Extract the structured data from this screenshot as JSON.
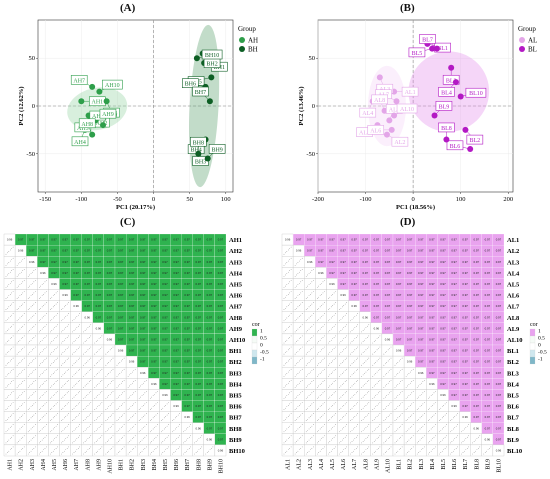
{
  "panels": {
    "A": {
      "label": "(A)"
    },
    "B": {
      "label": "(B)"
    },
    "C": {
      "label": "(C)"
    },
    "D": {
      "label": "(D)"
    }
  },
  "chart_data": [
    {
      "type": "scatter",
      "panel": "A",
      "xlabel": "PC1 (20.17%)",
      "ylabel": "PC2 (12.62%)",
      "xlim": [
        -160,
        110
      ],
      "ylim": [
        -90,
        90
      ],
      "xticks": [
        -150,
        -100,
        -50,
        0,
        50,
        100
      ],
      "yticks": [
        -50,
        0,
        50
      ],
      "legend": {
        "title": "Group",
        "placement": "right"
      },
      "colors": {
        "AH": "#2e9e4a",
        "BH": "#0d5e24"
      },
      "series": [
        {
          "name": "AH",
          "points": [
            {
              "label": "AH1",
              "x": -100,
              "y": 5
            },
            {
              "label": "AH2",
              "x": -90,
              "y": -10
            },
            {
              "label": "AH3",
              "x": -65,
              "y": 5
            },
            {
              "label": "AH4",
              "x": -95,
              "y": -25
            },
            {
              "label": "AH5",
              "x": -80,
              "y": -15
            },
            {
              "label": "AH6",
              "x": -55,
              "y": -10
            },
            {
              "label": "AH7",
              "x": -85,
              "y": 20
            },
            {
              "label": "AH8",
              "x": -85,
              "y": -30
            },
            {
              "label": "AH9",
              "x": -70,
              "y": -20
            },
            {
              "label": "AH10",
              "x": -75,
              "y": 15
            }
          ]
        },
        {
          "name": "BH",
          "points": [
            {
              "label": "BH1",
              "x": 70,
              "y": 45
            },
            {
              "label": "BH2",
              "x": 68,
              "y": 55
            },
            {
              "label": "BH3",
              "x": 65,
              "y": -45
            },
            {
              "label": "BH4",
              "x": 72,
              "y": -35
            },
            {
              "label": "BH5",
              "x": 80,
              "y": 30
            },
            {
              "label": "BH6",
              "x": 72,
              "y": 20
            },
            {
              "label": "BH7",
              "x": 78,
              "y": 5
            },
            {
              "label": "BH8",
              "x": 62,
              "y": -50
            },
            {
              "label": "BH9",
              "x": 75,
              "y": -55
            },
            {
              "label": "BH10",
              "x": 60,
              "y": 50
            }
          ]
        }
      ]
    },
    {
      "type": "scatter",
      "panel": "B",
      "xlabel": "PC1 (18.56%)",
      "ylabel": "PC2 (13.46%)",
      "xlim": [
        -200,
        210
      ],
      "ylim": [
        -90,
        90
      ],
      "xticks": [
        -200,
        -100,
        0,
        100,
        200
      ],
      "yticks": [
        -50,
        0,
        50
      ],
      "legend": {
        "title": "Group",
        "placement": "right"
      },
      "colors": {
        "AL": "#e3a6e8",
        "BL": "#b319c4"
      },
      "series": [
        {
          "name": "AL",
          "points": [
            {
              "label": "AL1",
              "x": -40,
              "y": 15
            },
            {
              "label": "AL2",
              "x": -55,
              "y": -30
            },
            {
              "label": "AL3",
              "x": -70,
              "y": 30
            },
            {
              "label": "AL4",
              "x": -85,
              "y": 5
            },
            {
              "label": "AL5",
              "x": -75,
              "y": -20
            },
            {
              "label": "AL6",
              "x": -45,
              "y": -25
            },
            {
              "label": "AL7",
              "x": -35,
              "y": 5
            },
            {
              "label": "AL8",
              "x": -60,
              "y": -5
            },
            {
              "label": "AL9",
              "x": -50,
              "y": -15
            },
            {
              "label": "AL10",
              "x": -40,
              "y": -10
            }
          ]
        },
        {
          "name": "BL",
          "points": [
            {
              "label": "BL1",
              "x": 30,
              "y": 65
            },
            {
              "label": "BL2",
              "x": 110,
              "y": -25
            },
            {
              "label": "BL3",
              "x": 80,
              "y": 40
            },
            {
              "label": "BL4",
              "x": 90,
              "y": 25
            },
            {
              "label": "BL5",
              "x": 40,
              "y": 60
            },
            {
              "label": "BL6",
              "x": 120,
              "y": -45
            },
            {
              "label": "BL7",
              "x": 50,
              "y": 60
            },
            {
              "label": "BL8",
              "x": 70,
              "y": -35
            },
            {
              "label": "BL9",
              "x": 45,
              "y": -10
            },
            {
              "label": "BL10",
              "x": 100,
              "y": 10
            }
          ]
        }
      ]
    },
    {
      "type": "heatmap",
      "panel": "C",
      "labels": [
        "AH1",
        "AH2",
        "AH3",
        "AH4",
        "AH5",
        "AH6",
        "AH7",
        "AH8",
        "AH9",
        "AH10",
        "BH1",
        "BH2",
        "BH3",
        "BH4",
        "BH5",
        "BH6",
        "BH7",
        "BH8",
        "BH9",
        "BH10"
      ],
      "upper_value": 0.97,
      "diag_value": 0.96,
      "legend": {
        "title": "cor",
        "ticks": [
          "1",
          "0.5",
          "0",
          "-0.5",
          "-1"
        ],
        "placement": "right"
      },
      "color": "#2fb34f"
    },
    {
      "type": "heatmap",
      "panel": "D",
      "labels": [
        "AL1",
        "AL2",
        "AL3",
        "AL4",
        "AL5",
        "AL6",
        "AL7",
        "AL8",
        "AL9",
        "AL10",
        "BL1",
        "BL2",
        "BL3",
        "BL4",
        "BL5",
        "BL6",
        "BL7",
        "BL8",
        "BL9",
        "BL10"
      ],
      "upper_value": 0.97,
      "diag_value": 0.96,
      "legend": {
        "title": "cor",
        "ticks": [
          "1",
          "0.5",
          "0",
          "-0.5",
          "-1"
        ],
        "placement": "right"
      },
      "color": "#e9a3ef"
    }
  ]
}
